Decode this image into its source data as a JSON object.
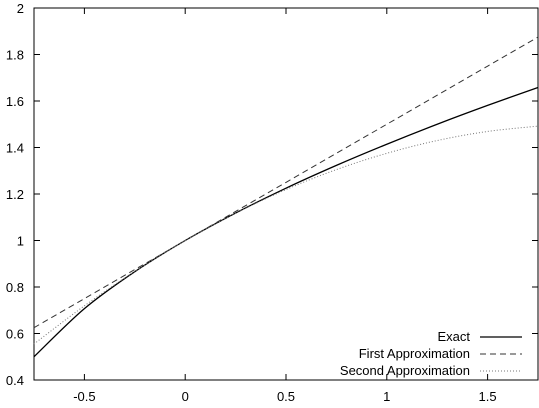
{
  "chart_data": {
    "type": "line",
    "title": "",
    "xlabel": "",
    "ylabel": "",
    "xlim": [
      -0.75,
      1.75
    ],
    "ylim": [
      0.4,
      2.0
    ],
    "grid": false,
    "legend_position": "bottom-right",
    "x_ticks": [
      {
        "value": -0.5,
        "label": "-0.5"
      },
      {
        "value": 0,
        "label": "0"
      },
      {
        "value": 0.5,
        "label": "0.5"
      },
      {
        "value": 1,
        "label": "1"
      },
      {
        "value": 1.5,
        "label": "1.5"
      }
    ],
    "y_ticks": [
      {
        "value": 0.4,
        "label": "0.4"
      },
      {
        "value": 0.6,
        "label": "0.6"
      },
      {
        "value": 0.8,
        "label": "0.8"
      },
      {
        "value": 1.0,
        "label": "1"
      },
      {
        "value": 1.2,
        "label": "1.2"
      },
      {
        "value": 1.4,
        "label": "1.4"
      },
      {
        "value": 1.6,
        "label": "1.6"
      },
      {
        "value": 1.8,
        "label": "1.8"
      },
      {
        "value": 2.0,
        "label": "2"
      }
    ],
    "x": [
      -0.75,
      -0.5,
      -0.25,
      0,
      0.25,
      0.5,
      0.75,
      1.0,
      1.25,
      1.5,
      1.75
    ],
    "series": [
      {
        "name": "Exact",
        "style": "solid",
        "values": [
          0.5,
          0.707,
          0.866,
          1.0,
          1.118,
          1.225,
          1.323,
          1.414,
          1.5,
          1.581,
          1.658
        ]
      },
      {
        "name": "First Approximation",
        "style": "dashed",
        "values": [
          0.625,
          0.75,
          0.875,
          1.0,
          1.125,
          1.25,
          1.375,
          1.5,
          1.625,
          1.75,
          1.875
        ]
      },
      {
        "name": "Second Approximation",
        "style": "dotted",
        "values": [
          0.555,
          0.719,
          0.867,
          1.0,
          1.117,
          1.219,
          1.305,
          1.375,
          1.43,
          1.469,
          1.492
        ]
      }
    ]
  }
}
